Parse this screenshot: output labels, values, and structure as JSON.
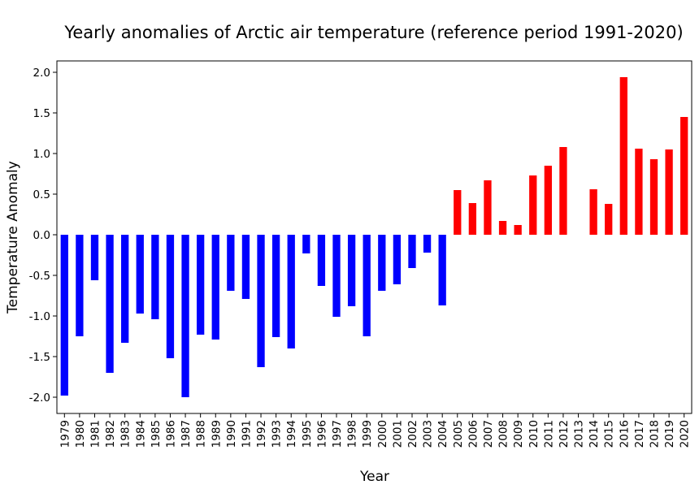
{
  "chart_data": {
    "type": "bar",
    "title": "Yearly anomalies of Arctic air temperature (reference period 1991-2020)",
    "xlabel": "Year",
    "ylabel": "Temperature Anomaly",
    "categories": [
      "1979",
      "1980",
      "1981",
      "1982",
      "1983",
      "1984",
      "1985",
      "1986",
      "1987",
      "1988",
      "1989",
      "1990",
      "1991",
      "1992",
      "1993",
      "1994",
      "1995",
      "1996",
      "1997",
      "1998",
      "1999",
      "2000",
      "2001",
      "2002",
      "2003",
      "2004",
      "2005",
      "2006",
      "2007",
      "2008",
      "2009",
      "2010",
      "2011",
      "2012",
      "2013",
      "2014",
      "2015",
      "2016",
      "2017",
      "2018",
      "2019",
      "2020"
    ],
    "values": [
      -1.98,
      -1.25,
      -0.56,
      -1.7,
      -1.33,
      -0.97,
      -1.04,
      -1.52,
      -2.0,
      -1.23,
      -1.29,
      -0.69,
      -0.79,
      -1.63,
      -1.26,
      -1.4,
      -0.23,
      -0.63,
      -1.01,
      -0.88,
      -1.25,
      -0.69,
      -0.61,
      -0.41,
      -0.22,
      -0.87,
      0.55,
      0.39,
      0.67,
      0.17,
      0.12,
      0.73,
      0.85,
      1.08,
      0.0,
      0.56,
      0.38,
      1.94,
      1.06,
      0.93,
      1.05,
      1.45
    ],
    "ylim": [
      -2.2,
      2.14
    ],
    "yticks": [
      "-2.0",
      "-1.5",
      "-1.0",
      "-0.5",
      "0.0",
      "0.5",
      "1.0",
      "1.5",
      "2.0"
    ],
    "grid": false,
    "colors": {
      "negative": "#0000ff",
      "positive": "#ff0000"
    }
  }
}
